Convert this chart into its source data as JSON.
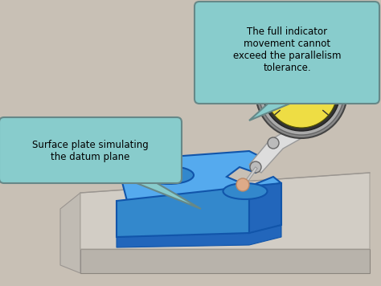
{
  "bg_color": "#c8c0b5",
  "figure_bg": "#c8c0b5",
  "plate_face_color": "#c0bab2",
  "plate_top_color": "#d5d0c8",
  "plate_edge_color": "#a8a39b",
  "wp_top_color": "#55aaee",
  "wp_side_color": "#2266bb",
  "wp_front_color": "#3388cc",
  "bubble1_color": "#88cccc",
  "bubble1_text": "Surface plate simulating\nthe datum plane",
  "bubble2_color": "#88cccc",
  "bubble2_text": "The full indicator\nmovement cannot\nexceed the parallelism\ntolerance.",
  "gauge_face_color": "#eedd44",
  "gauge_rim_color": "#aaaaaa",
  "gauge_dark_color": "#333333",
  "arm_color": "#dddddd",
  "arm_edge_color": "#999999"
}
